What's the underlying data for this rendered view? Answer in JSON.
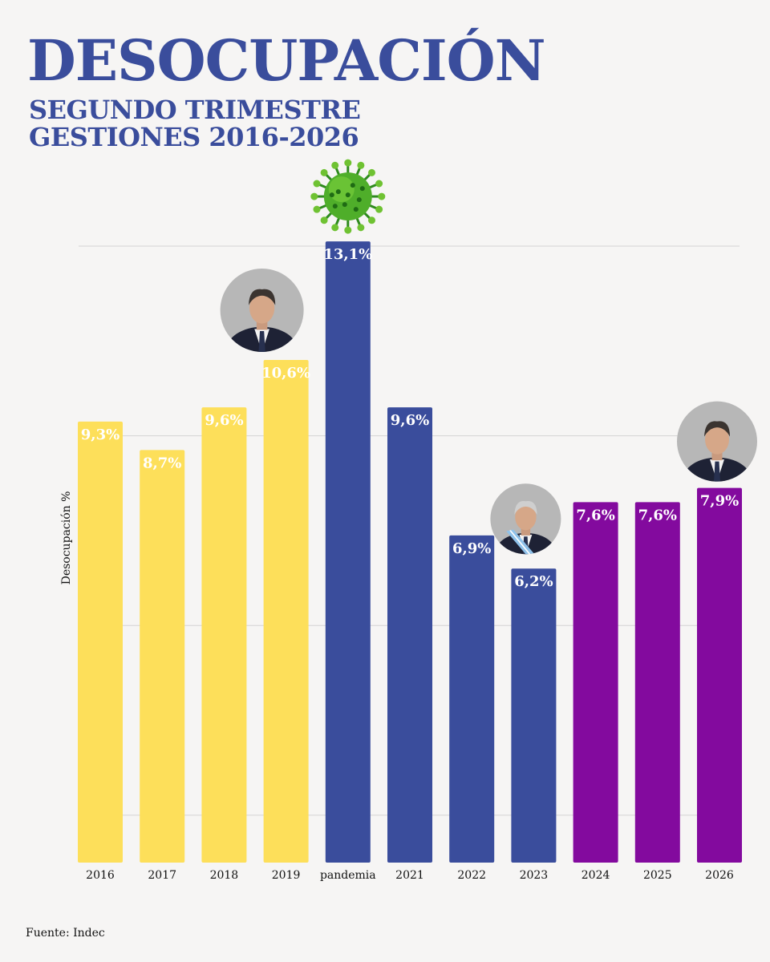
{
  "title": "DESOCUPACIÓN",
  "subtitle_line1": "SEGUNDO TRIMESTRE",
  "subtitle_line2": "GESTIONES 2016-2026",
  "source": "Fuente: Indec",
  "colors": {
    "background": "#f6f5f4",
    "title": "#3a4d9c",
    "yellow": "#fddf5a",
    "blue": "#3a4d9c",
    "purple": "#830a9e",
    "grid": "#d4d4d4"
  },
  "chart_data": {
    "type": "bar",
    "ylabel": "Desocupación %",
    "xlabel": "",
    "ylim": [
      0,
      14.2
    ],
    "gridlines": [
      1,
      5,
      9,
      13
    ],
    "grid": true,
    "categories": [
      "2016",
      "2017",
      "2018",
      "2019",
      "pandemia",
      "2021",
      "2022",
      "2023",
      "2024",
      "2025",
      "2026"
    ],
    "values": [
      9.3,
      8.7,
      9.6,
      10.6,
      13.1,
      9.6,
      6.9,
      6.2,
      7.6,
      7.6,
      7.9
    ],
    "labels": [
      "9,3%",
      "8,7%",
      "9,6%",
      "10,6%",
      "13,1%",
      "9,6%",
      "6,9%",
      "6,2%",
      "7,6%",
      "7,6%",
      "7,9%"
    ],
    "bar_colors": [
      "yellow",
      "yellow",
      "yellow",
      "yellow",
      "blue",
      "blue",
      "blue",
      "blue",
      "purple",
      "purple",
      "purple"
    ],
    "annotations": [
      {
        "category": "2019",
        "icon": "president-portrait-icon"
      },
      {
        "category": "pandemia",
        "icon": "coronavirus-icon"
      },
      {
        "category": "2023",
        "icon": "president-portrait-icon"
      },
      {
        "category": "2026",
        "icon": "president-portrait-icon"
      }
    ]
  }
}
